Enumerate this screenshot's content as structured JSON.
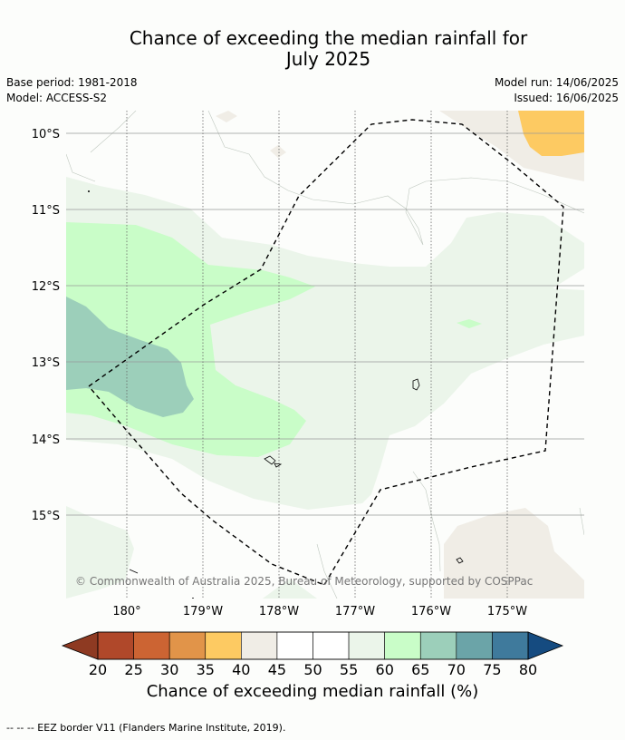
{
  "title_line1": "Chance of exceeding the median rainfall for",
  "title_line2": "July 2025",
  "meta": {
    "base_period": "Base period: 1981-2018",
    "model": "Model: ACCESS-S2",
    "model_run": "Model run: 14/06/2025",
    "issued": "Issued: 16/06/2025"
  },
  "map": {
    "lat_labels": [
      "10°S",
      "11°S",
      "12°S",
      "13°S",
      "14°S",
      "15°S"
    ],
    "lon_labels": [
      "180°",
      "179°W",
      "178°W",
      "177°W",
      "176°W",
      "175°W"
    ],
    "copyright": "© Commonwealth of Australia 2025, Bureau of Meteorology, supported by COSPPac",
    "colors": {
      "ocean_background": "#fcfdfb",
      "band_55_60": "#ebf5ea",
      "band_60_65": "#c9fdc8",
      "band_65_70": "#9ccfba",
      "band_40_45": "#f0ede6",
      "band_35_40": "#fdca62"
    }
  },
  "colorbar": {
    "ticks": [
      "20",
      "25",
      "30",
      "35",
      "40",
      "45",
      "50",
      "55",
      "60",
      "65",
      "70",
      "75",
      "80"
    ],
    "colors": [
      "#b0482a",
      "#cc6433",
      "#e19449",
      "#fdca62",
      "#f0ede6",
      "#ffffff",
      "#ffffff",
      "#ebf5ea",
      "#c9fdc8",
      "#9ccfba",
      "#6ba4a8",
      "#3f7a9c"
    ],
    "low_extend_color": "#8e3a22",
    "high_extend_color": "#154b80",
    "label": "Chance of exceeding median rainfall (%)"
  },
  "footnote": "--  --  -- EEZ border V11 (Flanders Marine Institute, 2019)."
}
